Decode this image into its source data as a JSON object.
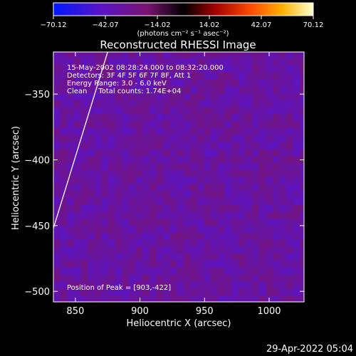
{
  "chart_data": {
    "type": "heatmap",
    "title": "Reconstructed RHESSI Image",
    "xlabel": "Heliocentric X (arcsec)",
    "ylabel": "Heliocentric Y (arcsec)",
    "xlim": [
      833,
      1027
    ],
    "ylim": [
      -508,
      -318
    ],
    "x_ticks": [
      "850",
      "900",
      "950",
      "1000"
    ],
    "x_tick_values": [
      850,
      900,
      950,
      1000
    ],
    "y_ticks": [
      "-350",
      "-400",
      "-450",
      "-500"
    ],
    "y_tick_values": [
      -350,
      -400,
      -450,
      -500
    ],
    "colorbar": {
      "min": -70.12,
      "max": 70.12,
      "tick_labels": [
        "-70.12",
        "-42.07",
        "-14.02",
        "14.02",
        "42.07",
        "70.12"
      ],
      "units": "(photons cm⁻² s⁻¹ asec⁻²)"
    },
    "annotations": {
      "time": "15-May-2002 08:28:24.000 to 08:32:20.000",
      "detectors": "Detectors: 3F 4F 5F 6F 7F 8F, Att 1",
      "energy": "Energy Range: 3.0 - 6.0 keV",
      "clean": "Clean     Total counts: 1.74E+04",
      "peak": "Position of Peak = [903,-422]"
    },
    "peak": {
      "x": 903,
      "y": -422
    },
    "limb_line": [
      {
        "x": 833,
        "y": -452
      },
      {
        "x": 875,
        "y": -318
      }
    ],
    "grid": false
  },
  "footer": {
    "date": "29-Apr-2022 05:04"
  },
  "colors": {
    "background": "#000000",
    "text": "#ffffff"
  }
}
